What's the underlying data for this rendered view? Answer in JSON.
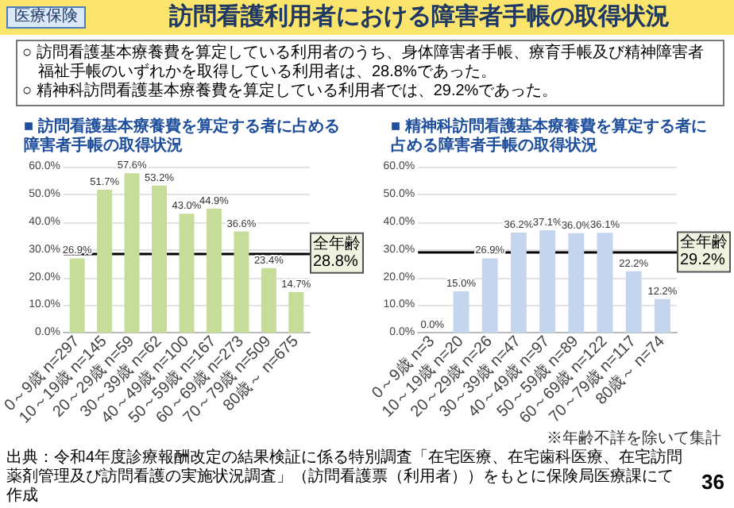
{
  "chart_data": [
    {
      "type": "bar",
      "title": "■ 訪問看護基本療養費を算定する者に占める障害者手帳の取得状況",
      "categories": [
        "0～9歳 n=297",
        "10～19歳 n=145",
        "20～29歳 n=59",
        "30～39歳 n=62",
        "40～49歳 n=100",
        "50～59歳 n=167",
        "60～69歳 n=273",
        "70～79歳 n=509",
        "80歳～ n=675"
      ],
      "values": [
        26.9,
        51.7,
        57.6,
        53.2,
        43.0,
        44.9,
        36.6,
        23.4,
        14.7
      ],
      "value_labels": [
        "26.9%",
        "51.7%",
        "57.6%",
        "53.2%",
        "43.0%",
        "44.9%",
        "36.6%",
        "23.4%",
        "14.7%"
      ],
      "color": "#c6dd9a",
      "ylim": [
        0,
        60
      ],
      "yticks": [
        {
          "value": 0,
          "label": "0.0%"
        },
        {
          "value": 10,
          "label": "10.0%"
        },
        {
          "value": 20,
          "label": "20.0%"
        },
        {
          "value": 30,
          "label": "30.0%"
        },
        {
          "value": 40,
          "label": "40.0%"
        },
        {
          "value": 50,
          "label": "50.0%"
        },
        {
          "value": 60,
          "label": "60.0%"
        }
      ],
      "grid": "y",
      "ref_lines": [
        {
          "axis": "y",
          "value": 28.8,
          "label": "全年齢\n28.8%",
          "color": "#000000"
        }
      ],
      "annotations": [
        "医療保険",
        "訪問看護利用者における障害者手帳の取得状況",
        "○ 訪問看護基本療養費を算定している利用者のうち、身体障害者手帳、療育手帳及び精神障害者福祉手帳のいずれかを取得している利用者は、28.8%であった。",
        "○ 精神科訪問看護基本療養費を算定している利用者では、29.2%であった。"
      ]
    },
    {
      "type": "bar",
      "title": "■ 精神科訪問看護基本療養費を算定する者に占める障害者手帳の取得状況",
      "categories": [
        "0～9歳 n=3",
        "10～19歳 n=20",
        "20～29歳 n=26",
        "30～39歳 n=47",
        "40～49歳 n=97",
        "50～59歳 n=89",
        "60～69歳 n=122",
        "70～79歳 n=117",
        "80歳～ n=74"
      ],
      "values": [
        0.0,
        15.0,
        26.9,
        36.2,
        37.1,
        36.0,
        36.1,
        22.2,
        12.2
      ],
      "value_labels": [
        "0.0%",
        "15.0%",
        "26.9%",
        "36.2%",
        "37.1%",
        "36.0%",
        "36.1%",
        "22.2%",
        "12.2%"
      ],
      "color": "#c5d5ee",
      "ylim": [
        0,
        60
      ],
      "yticks": [
        {
          "value": 0,
          "label": "0.0%"
        },
        {
          "value": 10,
          "label": "10.0%"
        },
        {
          "value": 20,
          "label": "20.0%"
        },
        {
          "value": 30,
          "label": "30.0%"
        },
        {
          "value": 40,
          "label": "40.0%"
        },
        {
          "value": 50,
          "label": "50.0%"
        },
        {
          "value": 60,
          "label": "60.0%"
        }
      ],
      "grid": "y",
      "ref_lines": [
        {
          "axis": "y",
          "value": 29.2,
          "label": "全年齢\n29.2%",
          "color": "#000000"
        }
      ],
      "annotations": [
        "※年齢不詳を除いて集計",
        "出典：令和4年度診療報酬改定の結果検証に係る特別調査「在宅医療、在宅歯科医療、在宅訪問薬剤管理及び訪問看護の実施状況調査」（訪問看護票（利用者））をもとに保険局医療課にて作成",
        "36"
      ]
    }
  ]
}
